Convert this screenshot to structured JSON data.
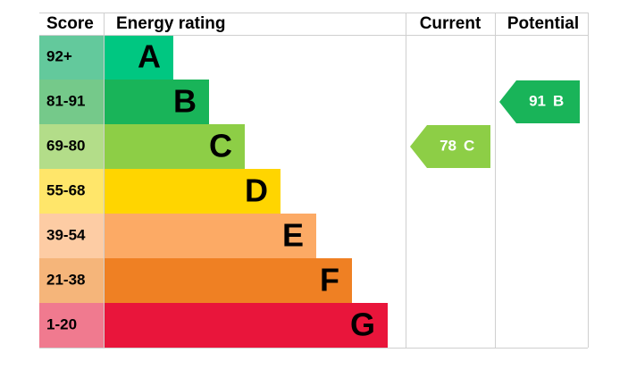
{
  "header": {
    "score": "Score",
    "rating": "Energy rating",
    "current": "Current",
    "potential": "Potential"
  },
  "bands": [
    {
      "score": "92+",
      "letter": "A",
      "color": "#00c781",
      "score_color": "#63c99c"
    },
    {
      "score": "81-91",
      "letter": "B",
      "color": "#19b459",
      "score_color": "#75c98a"
    },
    {
      "score": "69-80",
      "letter": "C",
      "color": "#8dce46",
      "score_color": "#b3dd89"
    },
    {
      "score": "55-68",
      "letter": "D",
      "color": "#ffd500",
      "score_color": "#ffe66a"
    },
    {
      "score": "39-54",
      "letter": "E",
      "color": "#fcaa65",
      "score_color": "#fdcca4"
    },
    {
      "score": "21-38",
      "letter": "F",
      "color": "#ef8023",
      "score_color": "#f5b57a"
    },
    {
      "score": "1-20",
      "letter": "G",
      "color": "#e9153b",
      "score_color": "#f07a8f"
    }
  ],
  "current": {
    "value": 78,
    "band": "C"
  },
  "potential": {
    "value": 91,
    "band": "B"
  }
}
